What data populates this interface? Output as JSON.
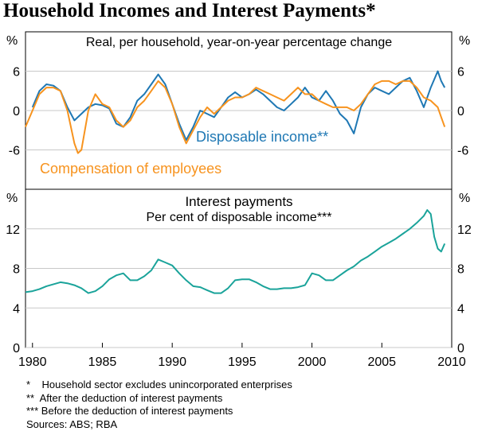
{
  "title": "Household Incomes and Interest Payments*",
  "panels": {
    "top": {
      "unit": "%",
      "subtitle": "Real, per household, year-on-year percentage change"
    },
    "bottom": {
      "unit": "%",
      "title": "Interest payments",
      "subtitle": "Per cent of disposable income***"
    }
  },
  "colors": {
    "disposable": "#1f78b4",
    "compensation": "#f7931e",
    "interest": "#1aa39a"
  },
  "notes": [
    "*    Household sector excludes unincorporated enterprises",
    "**  After the deduction of interest payments",
    "*** Before the deduction of interest payments",
    "Sources: ABS; RBA"
  ],
  "chart_data": [
    {
      "type": "line",
      "subtitle": "Real, per household, year-on-year percentage change",
      "ylabel": "%",
      "ylim": [
        -12,
        12
      ],
      "yticks": [
        -6,
        0,
        6
      ],
      "ytick_labels": [
        "-6",
        "0",
        "6"
      ],
      "xlim": [
        1979.5,
        2010
      ],
      "grid": "horizontal",
      "series": [
        {
          "name": "Disposable income**",
          "color": "#1f78b4",
          "x": [
            1980.0,
            1980.5,
            1981.0,
            1981.5,
            1982.0,
            1982.5,
            1983.0,
            1983.5,
            1984.0,
            1984.5,
            1985.0,
            1985.5,
            1986.0,
            1986.5,
            1987.0,
            1987.5,
            1988.0,
            1988.5,
            1989.0,
            1989.5,
            1990.0,
            1990.5,
            1991.0,
            1991.5,
            1992.0,
            1992.5,
            1993.0,
            1993.5,
            1994.0,
            1994.5,
            1995.0,
            1995.5,
            1996.0,
            1996.5,
            1997.0,
            1997.5,
            1998.0,
            1998.5,
            1999.0,
            1999.5,
            2000.0,
            2000.5,
            2001.0,
            2001.5,
            2002.0,
            2002.5,
            2003.0,
            2003.5,
            2004.0,
            2004.5,
            2005.0,
            2005.5,
            2006.0,
            2006.5,
            2007.0,
            2007.5,
            2008.0,
            2008.5,
            2009.0,
            2009.25,
            2009.5
          ],
          "values": [
            0.5,
            3.0,
            4.0,
            3.8,
            3.0,
            0.5,
            -1.5,
            -0.5,
            0.5,
            1.0,
            0.8,
            0.3,
            -2.0,
            -2.5,
            -1.0,
            1.5,
            2.5,
            4.0,
            5.5,
            4.0,
            1.0,
            -2.0,
            -4.5,
            -2.5,
            0.0,
            -0.5,
            -1.0,
            0.5,
            2.0,
            2.8,
            2.0,
            2.5,
            3.2,
            2.5,
            1.5,
            0.5,
            0.0,
            1.0,
            2.0,
            3.5,
            2.0,
            1.5,
            3.0,
            1.5,
            -0.5,
            -1.5,
            -3.5,
            0.5,
            2.5,
            3.5,
            3.0,
            2.5,
            3.5,
            4.5,
            5.0,
            3.0,
            0.5,
            3.5,
            6.0,
            4.5,
            3.5
          ]
        },
        {
          "name": "Compensation of employees",
          "color": "#f7931e",
          "x": [
            1979.5,
            1980.0,
            1980.5,
            1981.0,
            1981.5,
            1982.0,
            1982.5,
            1983.0,
            1983.25,
            1983.5,
            1984.0,
            1984.5,
            1985.0,
            1985.5,
            1986.0,
            1986.5,
            1987.0,
            1987.5,
            1988.0,
            1988.5,
            1989.0,
            1989.5,
            1990.0,
            1990.5,
            1991.0,
            1991.5,
            1992.0,
            1992.5,
            1993.0,
            1993.5,
            1994.0,
            1994.5,
            1995.0,
            1995.5,
            1996.0,
            1996.5,
            1997.0,
            1997.5,
            1998.0,
            1998.5,
            1999.0,
            1999.5,
            2000.0,
            2000.5,
            2001.0,
            2001.5,
            2002.0,
            2002.5,
            2003.0,
            2003.5,
            2004.0,
            2004.5,
            2005.0,
            2005.5,
            2006.0,
            2006.5,
            2007.0,
            2007.5,
            2008.0,
            2008.5,
            2009.0,
            2009.25,
            2009.5
          ],
          "values": [
            -2.5,
            0.0,
            2.5,
            3.5,
            3.5,
            3.0,
            0.0,
            -5.0,
            -6.5,
            -6.0,
            0.0,
            2.5,
            1.0,
            0.5,
            -1.5,
            -2.5,
            -1.5,
            0.5,
            1.5,
            3.0,
            4.5,
            3.5,
            1.0,
            -2.5,
            -5.0,
            -3.0,
            -1.0,
            0.5,
            -0.5,
            0.5,
            1.5,
            2.0,
            2.0,
            2.5,
            3.5,
            3.0,
            2.5,
            2.0,
            1.5,
            2.5,
            3.5,
            2.5,
            2.5,
            1.5,
            1.0,
            0.5,
            0.5,
            0.5,
            0.0,
            1.0,
            2.5,
            4.0,
            4.5,
            4.5,
            4.0,
            4.5,
            4.5,
            3.5,
            2.0,
            1.5,
            0.5,
            -1.0,
            -2.5
          ]
        }
      ],
      "annotations": [
        "Disposable income**",
        "Compensation of employees"
      ]
    },
    {
      "type": "line",
      "title": "Interest payments",
      "subtitle": "Per cent of disposable income***",
      "ylabel": "%",
      "ylim": [
        0,
        16
      ],
      "yticks": [
        0,
        4,
        8,
        12
      ],
      "ytick_labels": [
        "0",
        "4",
        "8",
        "12"
      ],
      "xlim": [
        1979.5,
        2010
      ],
      "xticks": [
        1980,
        1985,
        1990,
        1995,
        2000,
        2005,
        2010
      ],
      "xtick_labels": [
        "1980",
        "1985",
        "1990",
        "1995",
        "2000",
        "2005",
        "2010"
      ],
      "grid": "horizontal",
      "series": [
        {
          "name": "Interest payments",
          "color": "#1aa39a",
          "x": [
            1979.5,
            1980.0,
            1980.5,
            1981.0,
            1981.5,
            1982.0,
            1982.5,
            1983.0,
            1983.5,
            1984.0,
            1984.5,
            1985.0,
            1985.5,
            1986.0,
            1986.5,
            1987.0,
            1987.5,
            1988.0,
            1988.5,
            1989.0,
            1989.5,
            1990.0,
            1990.5,
            1991.0,
            1991.5,
            1992.0,
            1992.5,
            1993.0,
            1993.5,
            1994.0,
            1994.5,
            1995.0,
            1995.5,
            1996.0,
            1996.5,
            1997.0,
            1997.5,
            1998.0,
            1998.5,
            1999.0,
            1999.5,
            2000.0,
            2000.5,
            2001.0,
            2001.5,
            2002.0,
            2002.5,
            2003.0,
            2003.5,
            2004.0,
            2004.5,
            2005.0,
            2005.5,
            2006.0,
            2006.5,
            2007.0,
            2007.5,
            2008.0,
            2008.25,
            2008.5,
            2008.75,
            2009.0,
            2009.25,
            2009.5
          ],
          "values": [
            5.6,
            5.7,
            5.9,
            6.2,
            6.4,
            6.6,
            6.5,
            6.3,
            6.0,
            5.5,
            5.7,
            6.2,
            6.9,
            7.3,
            7.5,
            6.8,
            6.8,
            7.2,
            7.8,
            8.9,
            8.6,
            8.3,
            7.5,
            6.8,
            6.2,
            6.1,
            5.8,
            5.5,
            5.5,
            6.0,
            6.8,
            6.9,
            6.9,
            6.6,
            6.2,
            5.9,
            5.9,
            6.0,
            6.0,
            6.1,
            6.3,
            7.5,
            7.3,
            6.8,
            6.8,
            7.3,
            7.8,
            8.2,
            8.8,
            9.2,
            9.7,
            10.2,
            10.6,
            11.0,
            11.5,
            12.0,
            12.6,
            13.3,
            13.9,
            13.5,
            11.2,
            10.0,
            9.7,
            10.5
          ]
        }
      ]
    }
  ]
}
